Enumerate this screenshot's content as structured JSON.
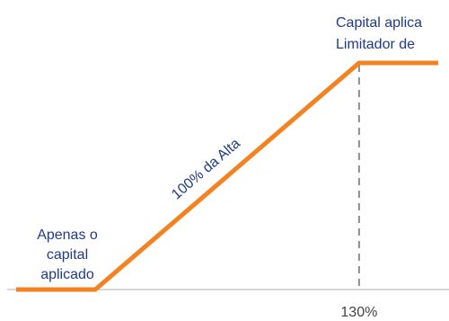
{
  "chart_data": {
    "type": "line",
    "x_tick_labels": [
      "130%"
    ],
    "series": [
      {
        "points": [
          [
            0,
            0
          ],
          [
            0.3,
            0
          ],
          [
            1.3,
            1
          ],
          [
            1.6,
            1
          ]
        ]
      }
    ],
    "reference_line": {
      "x": 1.3,
      "style": "dashed"
    },
    "annotations": {
      "slope_label": "100% da Alta",
      "low_label": [
        "Apenas o",
        "capital",
        "aplicado"
      ],
      "high_label": [
        "Capital aplica",
        "Limitador de"
      ]
    },
    "colors": {
      "series": "#f58220",
      "text": "#1f3a8a",
      "axis": "#c8c8c8",
      "reference_line": "#8c8c8c",
      "tick_text": "#444444"
    },
    "xlim": [
      0,
      1.6
    ],
    "ylim": [
      0,
      1
    ]
  }
}
